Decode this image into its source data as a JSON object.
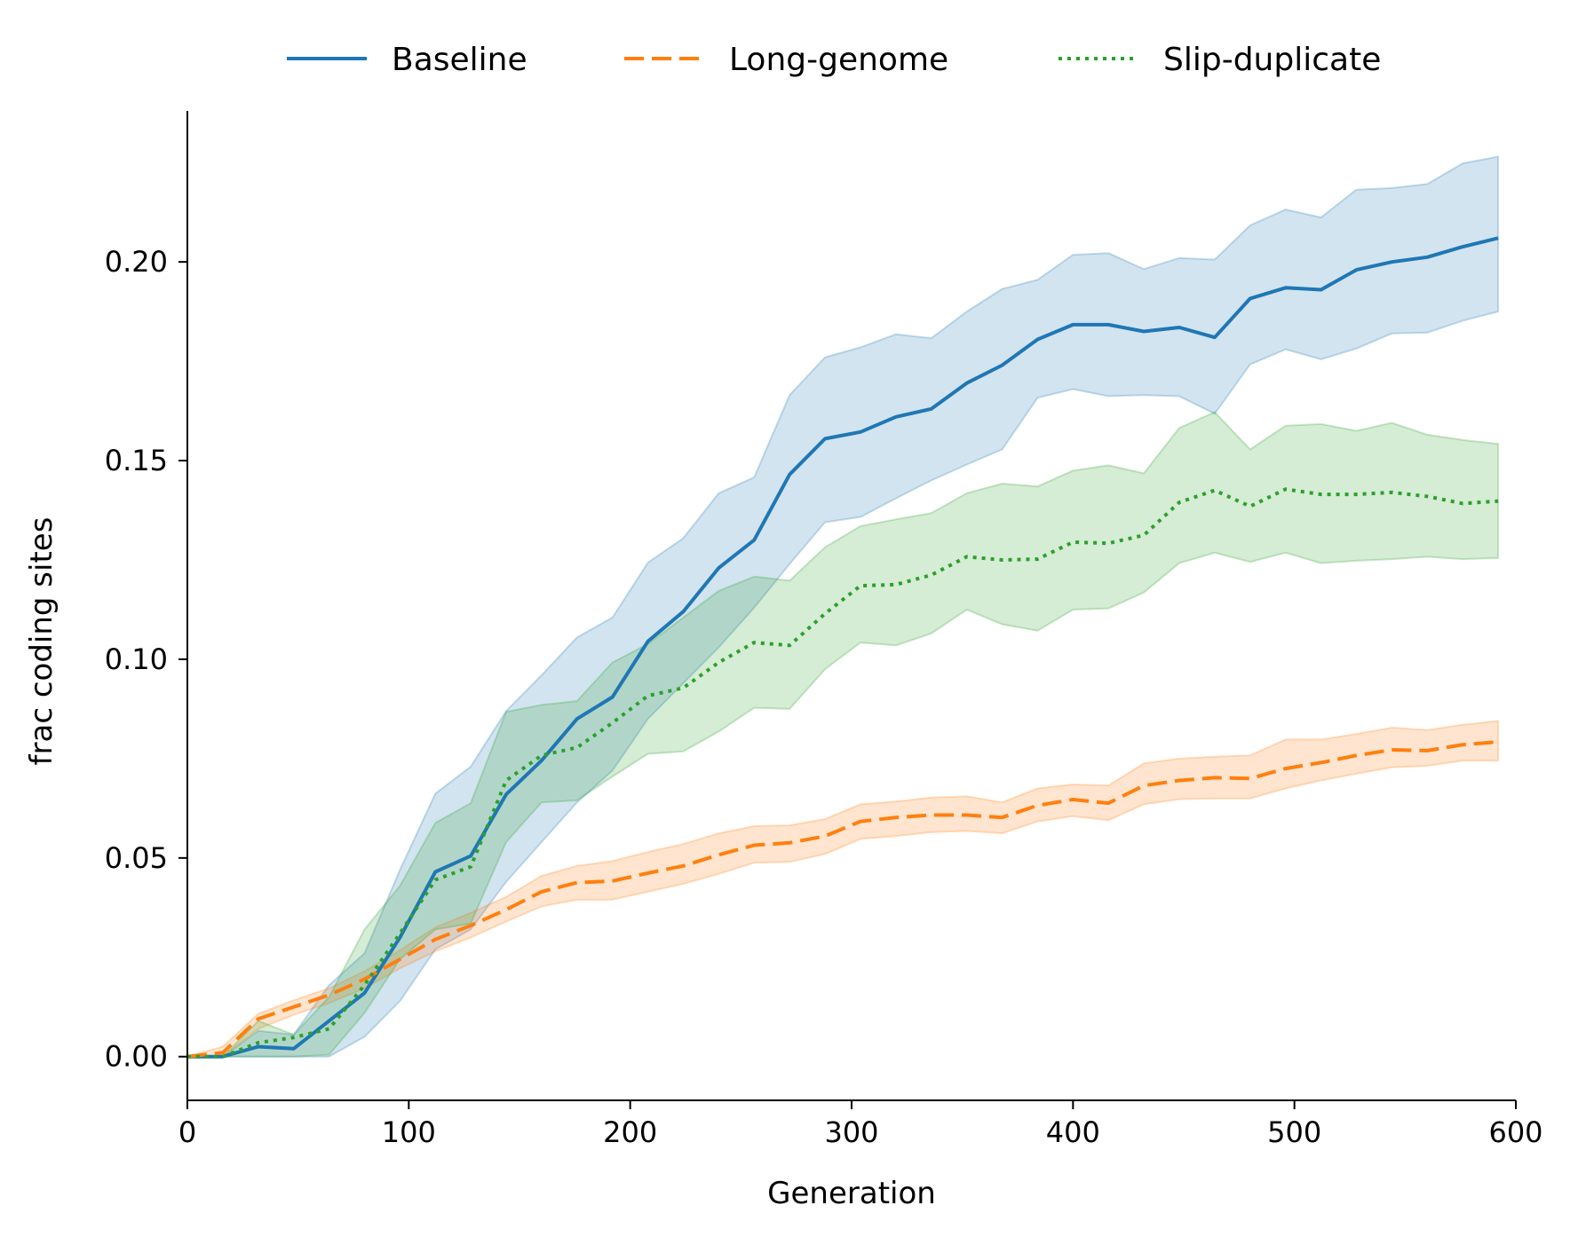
{
  "chart_data": {
    "type": "line",
    "title": "",
    "xlabel": "Generation",
    "ylabel": "frac coding sites",
    "xlim": [
      0,
      600
    ],
    "ylim": [
      -0.011,
      0.238
    ],
    "xticks": [
      0,
      100,
      200,
      300,
      400,
      500,
      600
    ],
    "xtick_labels": [
      "0",
      "100",
      "200",
      "300",
      "400",
      "500",
      "600"
    ],
    "yticks": [
      0.0,
      0.05,
      0.1,
      0.15,
      0.2
    ],
    "ytick_labels": [
      "0.00",
      "0.05",
      "0.10",
      "0.15",
      "0.20"
    ],
    "grid": false,
    "legend": {
      "placement": "top-center",
      "ncol": 3
    },
    "x": [
      0,
      16,
      32,
      48,
      64,
      80,
      96,
      112,
      128,
      144,
      160,
      176,
      192,
      208,
      224,
      240,
      256,
      272,
      288,
      304,
      320,
      336,
      352,
      368,
      384,
      400,
      416,
      432,
      448,
      464,
      480,
      496,
      512,
      528,
      544,
      560,
      576,
      592
    ],
    "series": [
      {
        "name": "Baseline",
        "color": "#1f77b4",
        "dash": "solid",
        "values": [
          0.0,
          0.0,
          0.0025,
          0.002,
          0.009,
          0.016,
          0.03,
          0.0465,
          0.0505,
          0.066,
          0.0745,
          0.085,
          0.0905,
          0.1045,
          0.112,
          0.123,
          0.13,
          0.1465,
          0.1555,
          0.1572,
          0.161,
          0.163,
          0.1695,
          0.174,
          0.1805,
          0.1842,
          0.1842,
          0.1825,
          0.1835,
          0.181,
          0.1908,
          0.1935,
          0.193,
          0.198,
          0.2,
          0.2012,
          0.2038,
          0.206
        ],
        "lower": [
          0.0,
          0.0,
          0.0,
          0.0,
          0.0,
          0.005,
          0.014,
          0.027,
          0.032,
          0.044,
          0.054,
          0.064,
          0.072,
          0.085,
          0.094,
          0.103,
          0.113,
          0.124,
          0.1345,
          0.1358,
          0.1405,
          0.145,
          0.149,
          0.1528,
          0.1658,
          0.168,
          0.1662,
          0.1665,
          0.1662,
          0.1618,
          0.1742,
          0.178,
          0.1755,
          0.1782,
          0.182,
          0.1822,
          0.1852,
          0.1875
        ],
        "upper": [
          0.0,
          0.0,
          0.0065,
          0.0055,
          0.018,
          0.026,
          0.047,
          0.0662,
          0.073,
          0.087,
          0.096,
          0.1055,
          0.1105,
          0.1243,
          0.1305,
          0.1418,
          0.1458,
          0.1665,
          0.176,
          0.1785,
          0.1818,
          0.1808,
          0.1875,
          0.1932,
          0.1955,
          0.2018,
          0.2022,
          0.1982,
          0.201,
          0.2006,
          0.2092,
          0.2132,
          0.2112,
          0.2182,
          0.2186,
          0.2196,
          0.2248,
          0.2265
        ]
      },
      {
        "name": "Long-genome",
        "color": "#ff7f0e",
        "dash": "dashed",
        "values": [
          0.0,
          0.001,
          0.0095,
          0.0125,
          0.0155,
          0.0195,
          0.0245,
          0.0295,
          0.033,
          0.037,
          0.0415,
          0.0438,
          0.0442,
          0.0462,
          0.048,
          0.0508,
          0.0532,
          0.0538,
          0.0555,
          0.0592,
          0.0602,
          0.0608,
          0.0608,
          0.0602,
          0.0632,
          0.0647,
          0.0638,
          0.0682,
          0.0695,
          0.0702,
          0.07,
          0.0725,
          0.074,
          0.0758,
          0.0772,
          0.077,
          0.0785,
          0.0792
        ],
        "lower": [
          0.0,
          0.0,
          0.007,
          0.0105,
          0.0135,
          0.0172,
          0.0222,
          0.0265,
          0.03,
          0.034,
          0.0378,
          0.0395,
          0.0395,
          0.0415,
          0.0435,
          0.046,
          0.0488,
          0.049,
          0.051,
          0.0548,
          0.0555,
          0.0565,
          0.0568,
          0.0562,
          0.0592,
          0.0605,
          0.0595,
          0.0635,
          0.0648,
          0.065,
          0.065,
          0.0675,
          0.0695,
          0.0712,
          0.0728,
          0.0732,
          0.0745,
          0.0745
        ],
        "upper": [
          0.0,
          0.0025,
          0.0108,
          0.0142,
          0.0172,
          0.0215,
          0.0268,
          0.0325,
          0.0362,
          0.0402,
          0.0455,
          0.048,
          0.0492,
          0.0515,
          0.0535,
          0.0562,
          0.058,
          0.0582,
          0.0598,
          0.0635,
          0.0642,
          0.0652,
          0.0655,
          0.064,
          0.0675,
          0.0685,
          0.0682,
          0.0738,
          0.075,
          0.0755,
          0.0758,
          0.0798,
          0.0798,
          0.0812,
          0.0828,
          0.0822,
          0.0835,
          0.0845
        ]
      },
      {
        "name": "Slip-duplicate",
        "color": "#2ca02c",
        "dash": "dotted",
        "values": [
          0.0,
          0.0,
          0.0035,
          0.0048,
          0.007,
          0.018,
          0.031,
          0.0445,
          0.0478,
          0.0695,
          0.0758,
          0.0778,
          0.084,
          0.0908,
          0.0928,
          0.0992,
          0.1042,
          0.1035,
          0.1115,
          0.1185,
          0.1188,
          0.1212,
          0.1258,
          0.125,
          0.1252,
          0.1295,
          0.1292,
          0.1312,
          0.1395,
          0.1425,
          0.1385,
          0.1428,
          0.1415,
          0.1415,
          0.142,
          0.141,
          0.1392,
          0.1398
        ],
        "lower": [
          0.0,
          0.0,
          0.0,
          0.0,
          0.0005,
          0.011,
          0.0245,
          0.032,
          0.0335,
          0.054,
          0.064,
          0.0645,
          0.0705,
          0.0762,
          0.0768,
          0.0818,
          0.0878,
          0.0875,
          0.0975,
          0.1042,
          0.1035,
          0.1065,
          0.1125,
          0.1088,
          0.1072,
          0.1125,
          0.1128,
          0.1168,
          0.1242,
          0.1268,
          0.1245,
          0.1268,
          0.1242,
          0.1248,
          0.1252,
          0.1258,
          0.1252,
          0.1255
        ],
        "upper": [
          0.0,
          0.0,
          0.009,
          0.0055,
          0.015,
          0.032,
          0.043,
          0.0588,
          0.0638,
          0.0868,
          0.0885,
          0.0895,
          0.0992,
          0.1038,
          0.1105,
          0.1172,
          0.1208,
          0.1198,
          0.1282,
          0.1335,
          0.1352,
          0.1368,
          0.1418,
          0.1442,
          0.1435,
          0.1475,
          0.1488,
          0.1468,
          0.1582,
          0.1622,
          0.1528,
          0.1588,
          0.1592,
          0.1575,
          0.1595,
          0.1565,
          0.1552,
          0.1542
        ]
      }
    ]
  }
}
